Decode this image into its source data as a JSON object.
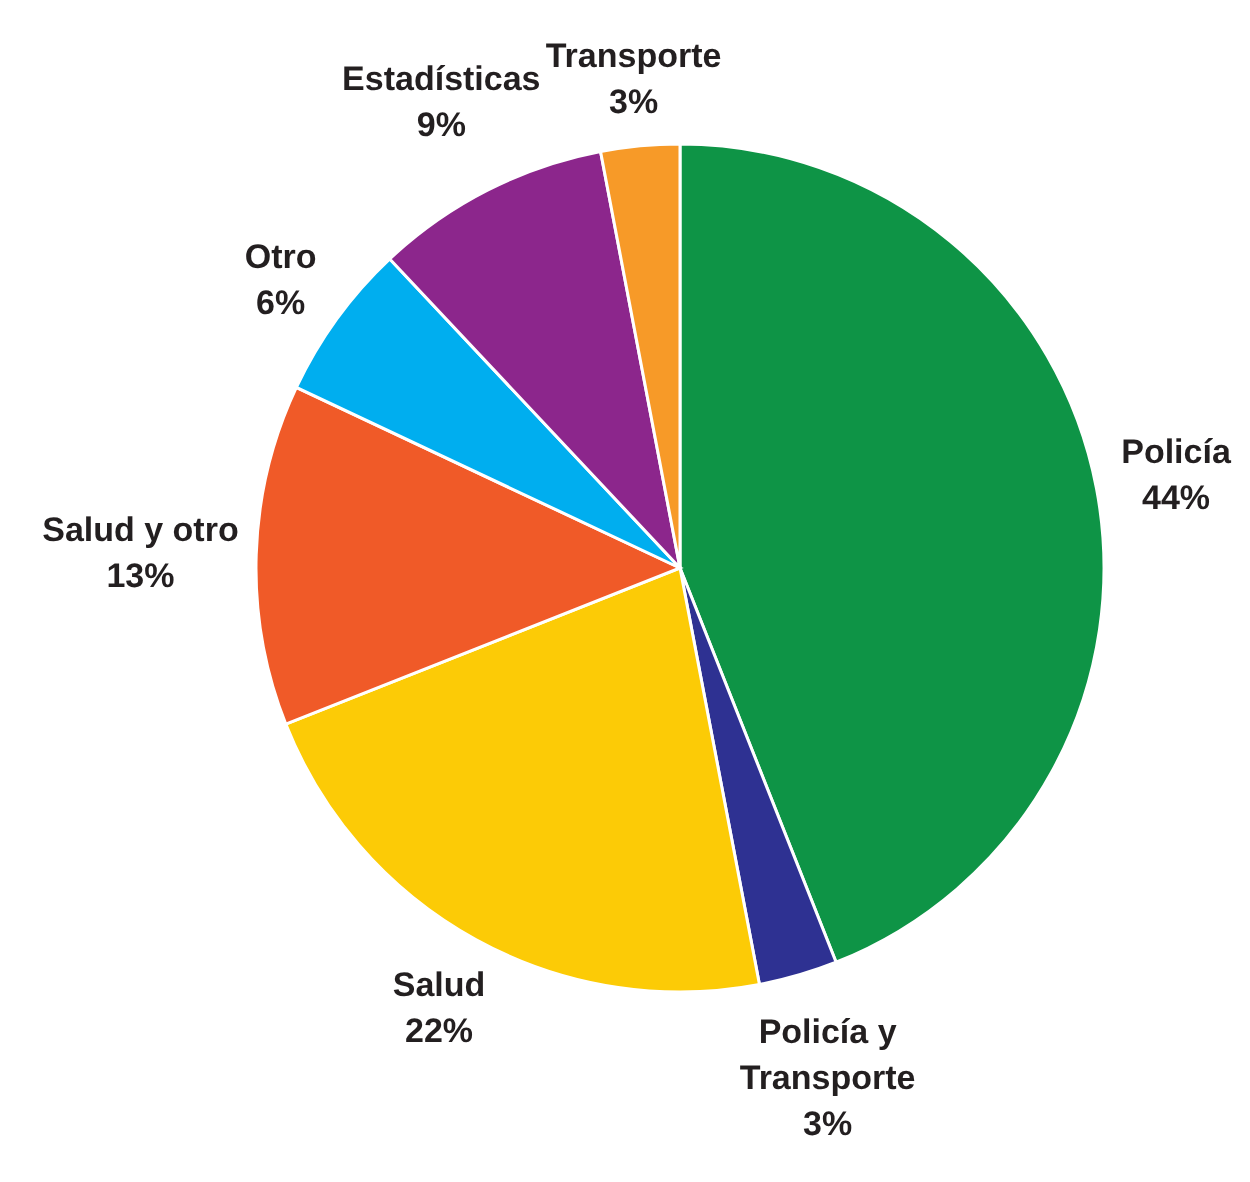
{
  "chart_data": {
    "type": "pie",
    "categories": [
      "Policía",
      "Policía y Transporte",
      "Salud",
      "Salud y otro",
      "Otro",
      "Estadísticas",
      "Transporte"
    ],
    "values": [
      44,
      3,
      22,
      13,
      6,
      9,
      3
    ],
    "colors": [
      "#0e9446",
      "#2e3192",
      "#fccb06",
      "#f05a28",
      "#00aeef",
      "#8c268c",
      "#f79a28"
    ],
    "value_labels": [
      "44%",
      "3%",
      "22%",
      "13%",
      "6%",
      "9%",
      "3%"
    ]
  }
}
